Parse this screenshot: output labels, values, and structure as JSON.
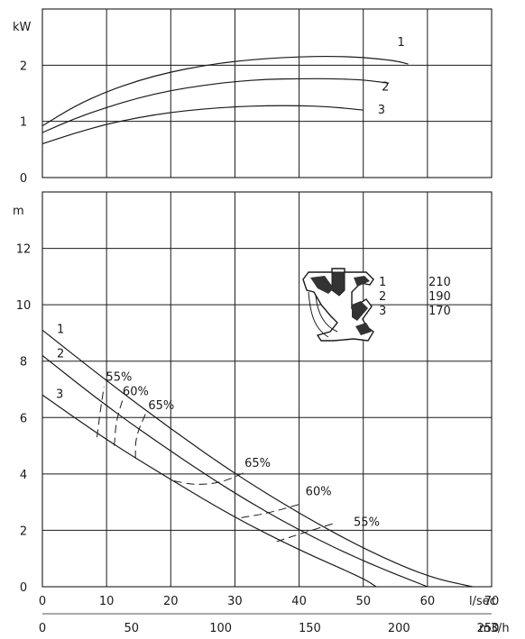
{
  "chart_data": [
    {
      "type": "line",
      "title": "",
      "ylabel": "kW",
      "xlabel": "",
      "xlim": [
        0,
        70
      ],
      "ylim": [
        0,
        3
      ],
      "yticks": [
        "0",
        "1",
        "2"
      ],
      "grid": true,
      "series": [
        {
          "name": "1",
          "x": [
            0,
            5,
            10,
            15,
            20,
            25,
            30,
            35,
            40,
            45,
            50,
            55,
            57
          ],
          "y": [
            0.92,
            1.27,
            1.53,
            1.73,
            1.88,
            1.99,
            2.07,
            2.12,
            2.15,
            2.16,
            2.14,
            2.08,
            2.02
          ]
        },
        {
          "name": "2",
          "x": [
            0,
            5,
            10,
            15,
            20,
            25,
            30,
            35,
            40,
            45,
            50,
            54
          ],
          "y": [
            0.8,
            1.05,
            1.25,
            1.42,
            1.55,
            1.64,
            1.71,
            1.75,
            1.76,
            1.76,
            1.74,
            1.68
          ]
        },
        {
          "name": "3",
          "x": [
            0,
            5,
            10,
            15,
            20,
            25,
            30,
            35,
            40,
            45,
            50
          ],
          "y": [
            0.6,
            0.79,
            0.95,
            1.07,
            1.16,
            1.22,
            1.26,
            1.28,
            1.28,
            1.26,
            1.2
          ]
        }
      ]
    },
    {
      "type": "line",
      "title": "",
      "ylabel": "m",
      "xlabel": "l/sec",
      "xlabel2": "m3/h",
      "xlim": [
        0,
        70
      ],
      "ylim": [
        0,
        14
      ],
      "xticks": [
        "0",
        "10",
        "20",
        "30",
        "40",
        "50",
        "60",
        "70"
      ],
      "xticks2": [
        "0",
        "50",
        "100",
        "150",
        "200",
        "250"
      ],
      "x2_values": [
        0,
        50,
        100,
        150,
        200,
        250
      ],
      "yticks": [
        "0",
        "2",
        "4",
        "6",
        "8",
        "10",
        "12"
      ],
      "grid": true,
      "series": [
        {
          "name": "1",
          "x": [
            0,
            10,
            20,
            30,
            40,
            50,
            60,
            67
          ],
          "y": [
            9.1,
            7.3,
            5.6,
            4.0,
            2.6,
            1.35,
            0.35,
            0
          ]
        },
        {
          "name": "2",
          "x": [
            0,
            10,
            20,
            30,
            40,
            50,
            60
          ],
          "y": [
            8.2,
            6.4,
            4.8,
            3.3,
            2.0,
            0.9,
            0
          ]
        },
        {
          "name": "3",
          "x": [
            0,
            10,
            20,
            30,
            40,
            50,
            52
          ],
          "y": [
            6.8,
            5.2,
            3.8,
            2.45,
            1.3,
            0.3,
            0
          ]
        }
      ],
      "efficiency_curves": [
        {
          "label": "55%",
          "label_pos": [
            9.9,
            7.3
          ],
          "points": [
            [
              8.5,
              5.3
            ],
            [
              9.0,
              6.2
            ],
            [
              9.6,
              7.1
            ]
          ],
          "points2": [
            [
              36.5,
              1.6
            ],
            [
              40.5,
              1.9
            ],
            [
              45.5,
              2.25
            ]
          ],
          "label2": "55%",
          "label2_pos": [
            48.5,
            2.15
          ]
        },
        {
          "label": "60%",
          "label_pos": [
            12.5,
            6.8
          ],
          "points": [
            [
              11.2,
              5.0
            ],
            [
              11.5,
              5.9
            ],
            [
              12.6,
              6.7
            ]
          ],
          "points2": [
            [
              31,
              2.45
            ],
            [
              35,
              2.6
            ],
            [
              40.5,
              2.95
            ]
          ],
          "label2": "60%",
          "label2_pos": [
            41,
            3.25
          ]
        },
        {
          "label": "65%",
          "label_pos": [
            16.5,
            6.3
          ],
          "points": [
            [
              14.5,
              4.55
            ],
            [
              14.5,
              5.3
            ],
            [
              16.2,
              6.2
            ]
          ],
          "points2": [
            [
              20.5,
              3.75
            ],
            [
              24,
              3.6
            ],
            [
              28,
              3.7
            ],
            [
              31.5,
              4.05
            ]
          ],
          "label2": "65%",
          "label2_pos": [
            31.5,
            4.25
          ]
        }
      ]
    }
  ],
  "impeller_legend": [
    {
      "n": "1",
      "d": "210"
    },
    {
      "n": "2",
      "d": "190"
    },
    {
      "n": "3",
      "d": "170"
    }
  ]
}
